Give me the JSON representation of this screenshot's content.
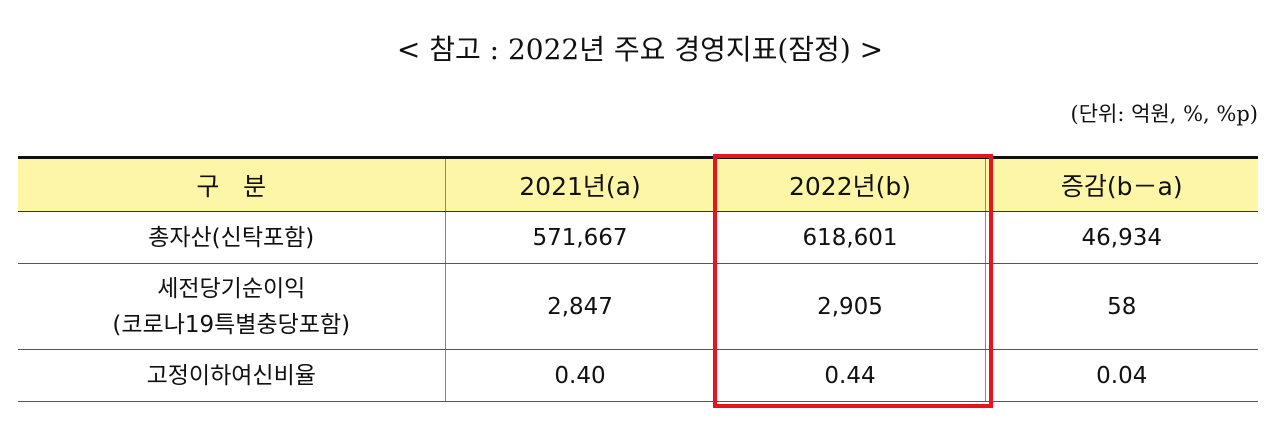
{
  "title": "< 참고 : 2022년 주요 경영지표(잠정) >",
  "unit": "(단위: 억원, %, %p)",
  "table": {
    "header": [
      "구   분",
      "2021년(a)",
      "2022년(b)",
      "증감(b－a)"
    ],
    "rows": [
      {
        "label": [
          "총자산(신탁포함)"
        ],
        "cells": [
          "571,667",
          "618,601",
          "46,934"
        ]
      },
      {
        "label": [
          "세전당기순이익",
          "(코로나19특별충당포함)"
        ],
        "cells": [
          "2,847",
          "2,905",
          "58"
        ]
      },
      {
        "label": [
          "고정이하여신비율"
        ],
        "cells": [
          "0.40",
          "0.44",
          "0.04"
        ]
      }
    ]
  }
}
